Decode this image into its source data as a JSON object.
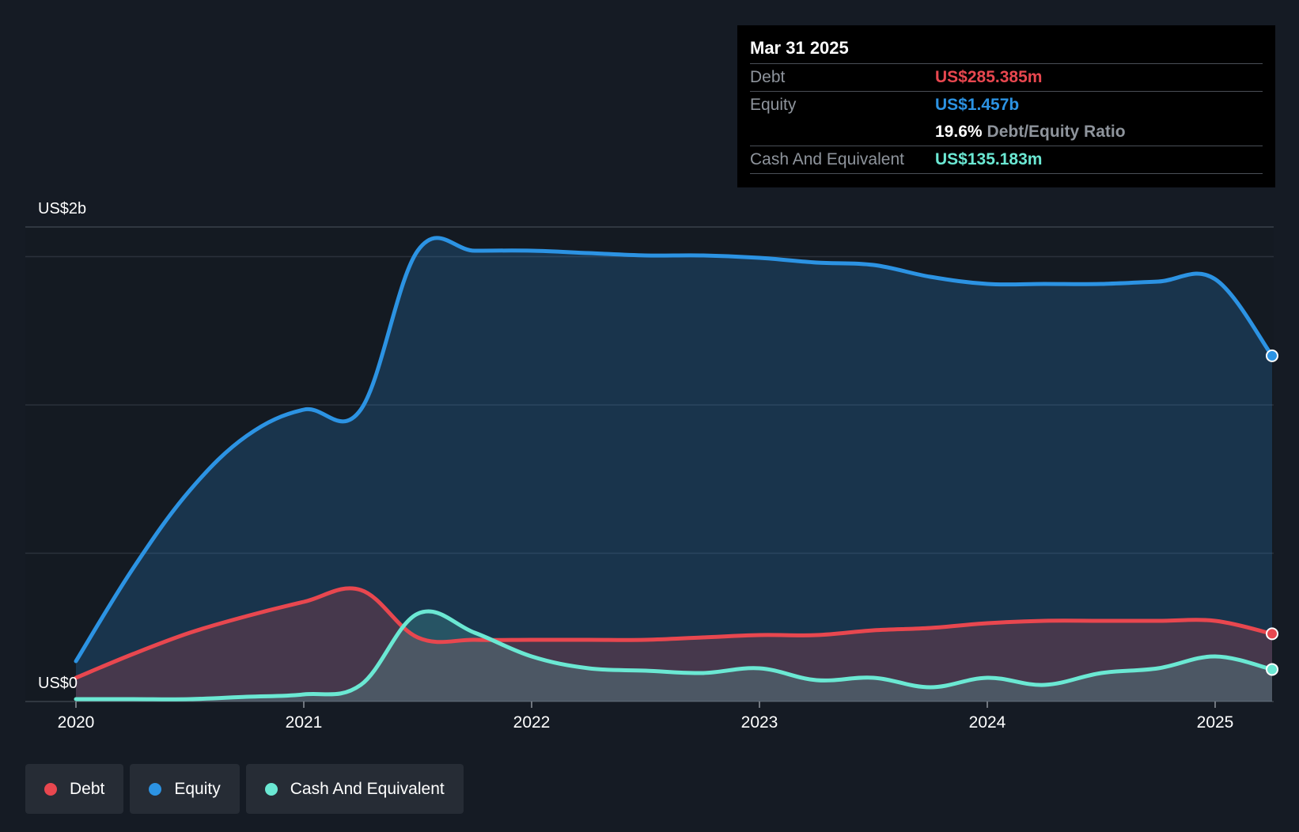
{
  "colors": {
    "background": "#151b24",
    "debt": "#e8474f",
    "equity": "#2c93e3",
    "cash": "#6be8d3"
  },
  "tooltip": {
    "date": "Mar 31 2025",
    "debt_label": "Debt",
    "debt_value": "US$285.385m",
    "equity_label": "Equity",
    "equity_value": "US$1.457b",
    "ratio_value": "19.6%",
    "ratio_label": "Debt/Equity Ratio",
    "cash_label": "Cash And Equivalent",
    "cash_value": "US$135.183m"
  },
  "legend": {
    "debt": "Debt",
    "equity": "Equity",
    "cash": "Cash And Equivalent"
  },
  "chart_data": {
    "type": "area",
    "y_axis_labels": [
      "US$2b",
      "US$0"
    ],
    "ylim": [
      0,
      2.0
    ],
    "y_unit": "US$ billions",
    "x_ticks": [
      "2020",
      "2021",
      "2022",
      "2023",
      "2024",
      "2025"
    ],
    "xlim": [
      2020.0,
      2025.25
    ],
    "grid": true,
    "legend_position": "bottom-left",
    "series": [
      {
        "name": "Equity",
        "x": [
          2020.0,
          2020.25,
          2020.5,
          2020.75,
          2021.0,
          2021.25,
          2021.5,
          2021.75,
          2022.0,
          2022.25,
          2022.5,
          2022.75,
          2023.0,
          2023.25,
          2023.5,
          2023.75,
          2024.0,
          2024.25,
          2024.5,
          2024.75,
          2025.0,
          2025.25
        ],
        "values": [
          0.17,
          0.56,
          0.89,
          1.12,
          1.23,
          1.23,
          1.9,
          1.9,
          1.9,
          1.89,
          1.88,
          1.88,
          1.87,
          1.85,
          1.84,
          1.79,
          1.76,
          1.76,
          1.76,
          1.77,
          1.78,
          1.457
        ]
      },
      {
        "name": "Debt",
        "x": [
          2020.0,
          2020.25,
          2020.5,
          2020.75,
          2021.0,
          2021.25,
          2021.5,
          2021.75,
          2022.0,
          2022.25,
          2022.5,
          2022.75,
          2023.0,
          2023.25,
          2023.5,
          2023.75,
          2024.0,
          2024.25,
          2024.5,
          2024.75,
          2025.0,
          2025.25
        ],
        "values": [
          0.1,
          0.2,
          0.29,
          0.36,
          0.42,
          0.47,
          0.27,
          0.26,
          0.26,
          0.26,
          0.26,
          0.27,
          0.28,
          0.28,
          0.3,
          0.31,
          0.33,
          0.34,
          0.34,
          0.34,
          0.34,
          0.285385
        ]
      },
      {
        "name": "Cash And Equivalent",
        "x": [
          2020.0,
          2020.25,
          2020.5,
          2020.75,
          2021.0,
          2021.25,
          2021.5,
          2021.75,
          2022.0,
          2022.25,
          2022.5,
          2022.75,
          2023.0,
          2023.25,
          2023.5,
          2023.75,
          2024.0,
          2024.25,
          2024.5,
          2024.75,
          2025.0,
          2025.25
        ],
        "values": [
          0.01,
          0.01,
          0.01,
          0.02,
          0.03,
          0.07,
          0.37,
          0.29,
          0.19,
          0.14,
          0.13,
          0.12,
          0.14,
          0.09,
          0.1,
          0.06,
          0.1,
          0.07,
          0.12,
          0.14,
          0.19,
          0.135183
        ]
      }
    ]
  }
}
